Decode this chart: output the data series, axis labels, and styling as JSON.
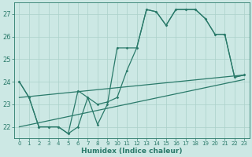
{
  "xlabel": "Humidex (Indice chaleur)",
  "xlim": [
    -0.5,
    23.5
  ],
  "ylim": [
    21.5,
    27.5
  ],
  "yticks": [
    22,
    23,
    24,
    25,
    26,
    27
  ],
  "xticks": [
    0,
    1,
    2,
    3,
    4,
    5,
    6,
    7,
    8,
    9,
    10,
    11,
    12,
    13,
    14,
    15,
    16,
    17,
    18,
    19,
    20,
    21,
    22,
    23
  ],
  "bg_color": "#cce8e4",
  "grid_color": "#aad0ca",
  "line_color": "#2a7a6a",
  "line1_x": [
    0,
    1,
    2,
    3,
    4,
    5,
    6,
    7,
    8,
    9,
    10,
    11,
    12,
    13,
    14,
    15,
    16,
    17,
    18,
    19,
    20,
    21,
    22,
    23
  ],
  "line1_y": [
    24.0,
    23.3,
    22.0,
    22.0,
    22.0,
    21.7,
    23.6,
    23.3,
    23.0,
    23.1,
    23.3,
    24.5,
    25.5,
    27.2,
    27.1,
    26.5,
    27.2,
    27.2,
    27.2,
    26.8,
    26.1,
    26.1,
    24.2,
    24.3
  ],
  "line2_x": [
    0,
    1,
    2,
    3,
    4,
    5,
    6,
    7,
    8,
    9,
    10,
    11,
    12,
    13,
    14,
    15,
    16,
    17,
    18,
    19,
    20,
    21,
    22,
    23
  ],
  "line2_y": [
    24.0,
    23.3,
    22.0,
    22.0,
    22.0,
    21.7,
    22.0,
    23.3,
    22.1,
    23.0,
    25.5,
    25.5,
    25.5,
    27.2,
    27.1,
    26.5,
    27.2,
    27.2,
    27.2,
    26.8,
    26.1,
    26.1,
    24.2,
    24.3
  ],
  "trend1_x": [
    0,
    23
  ],
  "trend1_y": [
    22.0,
    24.1
  ],
  "trend2_x": [
    0,
    23
  ],
  "trend2_y": [
    23.3,
    24.3
  ]
}
